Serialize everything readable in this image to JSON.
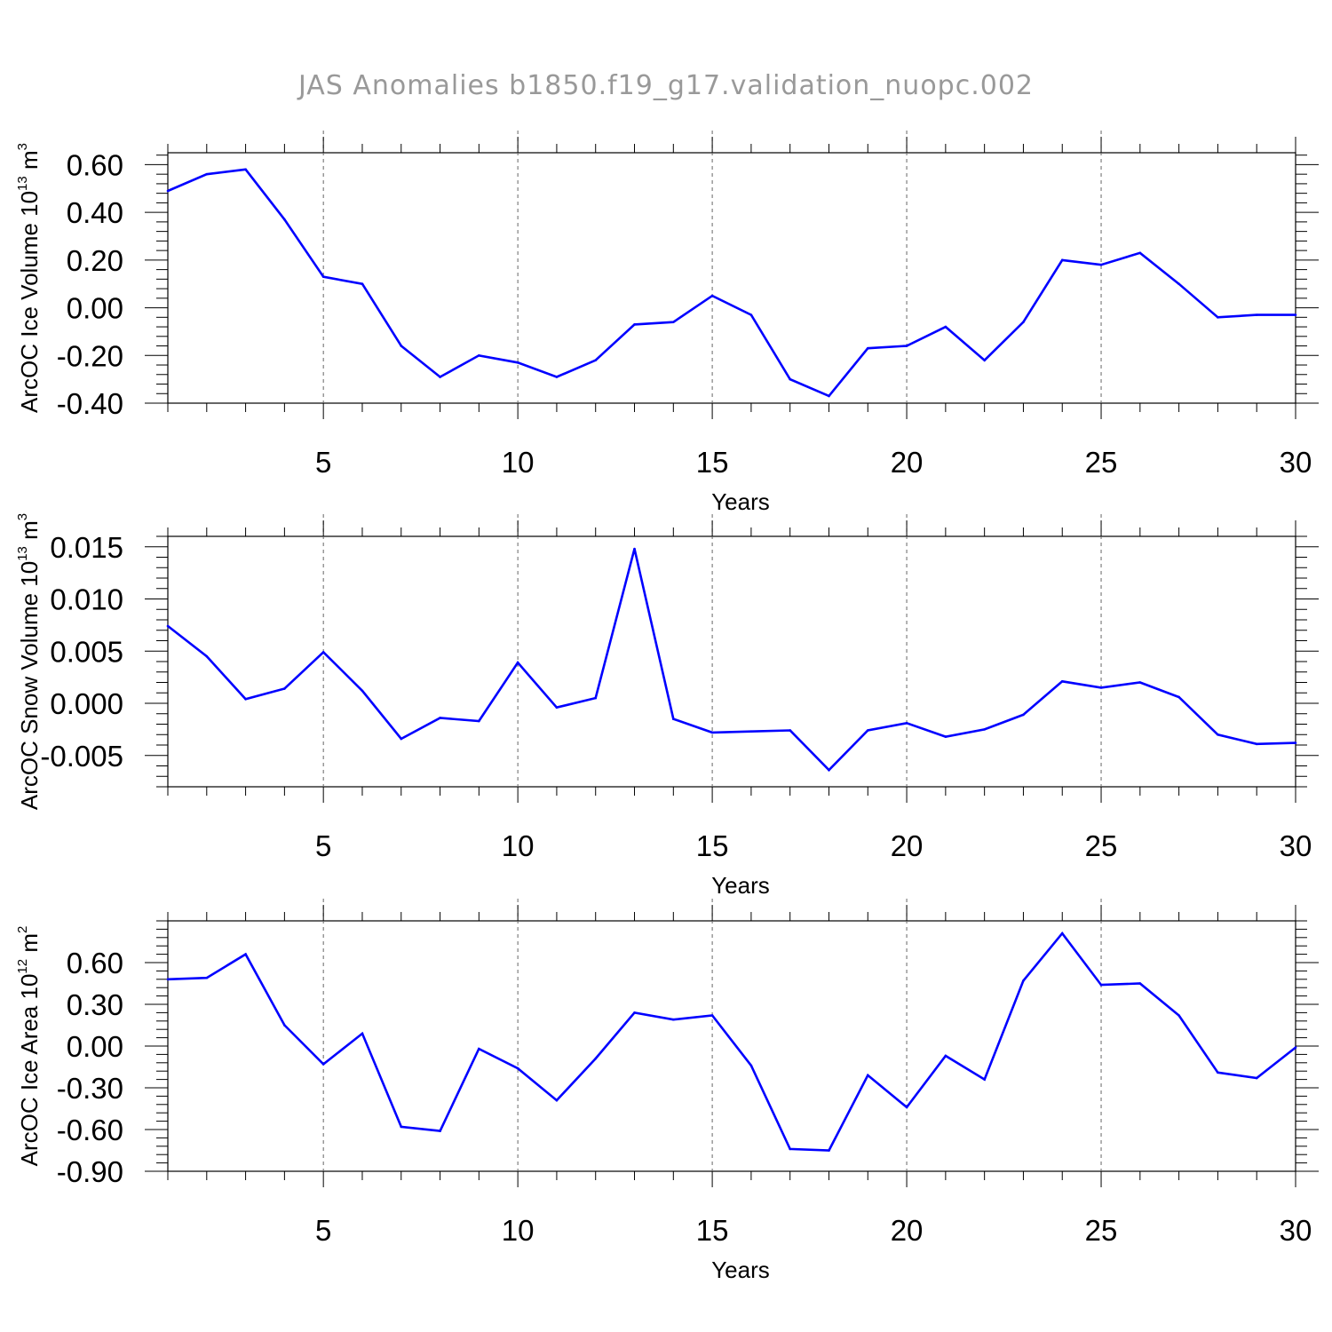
{
  "title": "JAS Anomalies b1850.f19_g17.validation_nuopc.002",
  "line_color": "#0000ff",
  "chart_data": [
    {
      "type": "line",
      "xlabel": "Years",
      "ylabel": "ArcOC Ice Volume 10",
      "ylabel_sup": "13",
      "ylabel_unit": " m",
      "ylabel_unit_sup": "3",
      "xlim": [
        1,
        30
      ],
      "ylim": [
        -0.4,
        0.65
      ],
      "yticks": [
        0.6,
        0.4,
        0.2,
        0.0,
        -0.2,
        -0.4
      ],
      "ytick_labels": [
        "0.60",
        "0.40",
        "0.20",
        "0.00",
        "-0.20",
        "-0.40"
      ],
      "xticks": [
        5,
        10,
        15,
        20,
        25,
        30
      ],
      "xtick_labels": [
        "5",
        "10",
        "15",
        "20",
        "25",
        "30"
      ],
      "x": [
        1,
        2,
        3,
        4,
        5,
        6,
        7,
        8,
        9,
        10,
        11,
        12,
        13,
        14,
        15,
        16,
        17,
        18,
        19,
        20,
        21,
        22,
        23,
        24,
        25,
        26,
        27,
        28,
        29,
        30
      ],
      "values": [
        0.49,
        0.56,
        0.58,
        0.37,
        0.13,
        0.1,
        -0.16,
        -0.29,
        -0.2,
        -0.23,
        -0.29,
        -0.22,
        -0.07,
        -0.06,
        0.05,
        -0.03,
        -0.3,
        -0.37,
        -0.17,
        -0.16,
        -0.08,
        -0.22,
        -0.06,
        0.2,
        0.18,
        0.23,
        0.1,
        -0.04,
        -0.03,
        -0.03
      ]
    },
    {
      "type": "line",
      "xlabel": "Years",
      "ylabel": "ArcOC Snow Volume 10",
      "ylabel_sup": "13",
      "ylabel_unit": " m",
      "ylabel_unit_sup": "3",
      "xlim": [
        1,
        30
      ],
      "ylim": [
        -0.008,
        0.016
      ],
      "yticks": [
        0.015,
        0.01,
        0.005,
        0.0,
        -0.005
      ],
      "ytick_labels": [
        "0.015",
        "0.010",
        "0.005",
        "0.000",
        "-0.005"
      ],
      "xticks": [
        5,
        10,
        15,
        20,
        25,
        30
      ],
      "xtick_labels": [
        "5",
        "10",
        "15",
        "20",
        "25",
        "30"
      ],
      "x": [
        1,
        2,
        3,
        4,
        5,
        6,
        7,
        8,
        9,
        10,
        11,
        12,
        13,
        14,
        15,
        16,
        17,
        18,
        19,
        20,
        21,
        22,
        23,
        24,
        25,
        26,
        27,
        28,
        29,
        30
      ],
      "values": [
        0.0074,
        0.0045,
        0.0004,
        0.0014,
        0.0049,
        0.0012,
        -0.0034,
        -0.0014,
        -0.0017,
        0.0039,
        -0.0004,
        0.0005,
        0.0148,
        -0.0015,
        -0.0028,
        -0.0027,
        -0.0026,
        -0.0064,
        -0.0026,
        -0.0019,
        -0.0032,
        -0.0025,
        -0.0011,
        0.0021,
        0.0015,
        0.002,
        0.0006,
        -0.003,
        -0.0039,
        -0.0038
      ]
    },
    {
      "type": "line",
      "xlabel": "Years",
      "ylabel": "ArcOC Ice Area 10",
      "ylabel_sup": "12",
      "ylabel_unit": " m",
      "ylabel_unit_sup": "2",
      "xlim": [
        1,
        30
      ],
      "ylim": [
        -0.9,
        0.9
      ],
      "yticks": [
        0.6,
        0.3,
        0.0,
        -0.3,
        -0.6,
        -0.9
      ],
      "ytick_labels": [
        "0.60",
        "0.30",
        "0.00",
        "-0.30",
        "-0.60",
        "-0.90"
      ],
      "xticks": [
        5,
        10,
        15,
        20,
        25,
        30
      ],
      "xtick_labels": [
        "5",
        "10",
        "15",
        "20",
        "25",
        "30"
      ],
      "x": [
        1,
        2,
        3,
        4,
        5,
        6,
        7,
        8,
        9,
        10,
        11,
        12,
        13,
        14,
        15,
        16,
        17,
        18,
        19,
        20,
        21,
        22,
        23,
        24,
        25,
        26,
        27,
        28,
        29,
        30
      ],
      "values": [
        0.48,
        0.49,
        0.66,
        0.15,
        -0.13,
        0.09,
        -0.58,
        -0.61,
        -0.02,
        -0.16,
        -0.39,
        -0.09,
        0.24,
        0.19,
        0.22,
        -0.14,
        -0.74,
        -0.75,
        -0.21,
        -0.44,
        -0.07,
        -0.24,
        0.47,
        0.81,
        0.44,
        0.45,
        0.22,
        -0.19,
        -0.23,
        -0.01
      ]
    }
  ]
}
